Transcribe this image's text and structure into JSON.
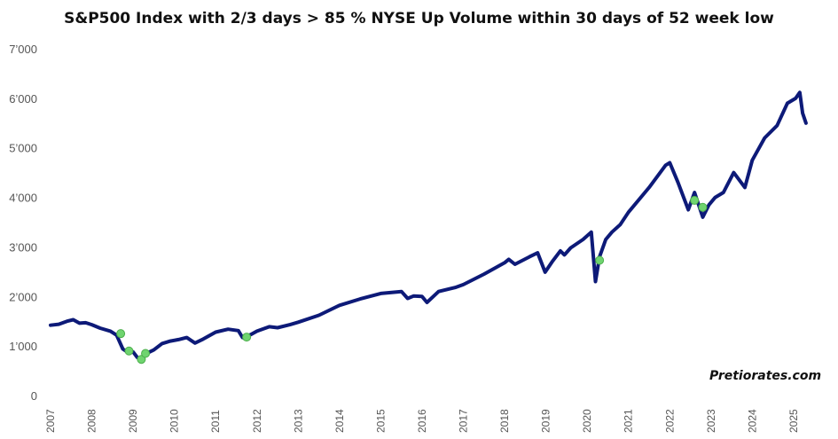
{
  "chart_data": {
    "type": "line",
    "title": "S&P500 Index with 2/3 days > 85 % NYSE Up Volume within 30 days of 52 week low",
    "watermark": "Pretiorates.com",
    "xlabel": "",
    "ylabel": "",
    "xlim": [
      2007.0,
      2025.6
    ],
    "ylim": [
      0,
      7000
    ],
    "y_ticks": [
      0,
      1000,
      2000,
      3000,
      4000,
      5000,
      6000,
      7000
    ],
    "y_tick_labels": [
      "0",
      "1’000",
      "2’000",
      "3’000",
      "4’000",
      "5’000",
      "6’000",
      "7’000"
    ],
    "x_ticks": [
      2007,
      2008,
      2009,
      2010,
      2011,
      2012,
      2013,
      2014,
      2015,
      2016,
      2017,
      2018,
      2019,
      2020,
      2021,
      2022,
      2023,
      2024,
      2025
    ],
    "x_tick_labels": [
      "2007",
      "2008",
      "2009",
      "2010",
      "2011",
      "2012",
      "2013",
      "2014",
      "2015",
      "2016",
      "2017",
      "2018",
      "2019",
      "2020",
      "2021",
      "2022",
      "2023",
      "2024",
      "2025"
    ],
    "grid": false,
    "legend": "none",
    "line_color": "#0d1a78",
    "marker_color": "#6fd46f",
    "series": [
      {
        "x": [
          2007.0,
          2007.2,
          2007.4,
          2007.55,
          2007.7,
          2007.85,
          2008.0,
          2008.2,
          2008.45,
          2008.6,
          2008.75,
          2008.88,
          2009.0,
          2009.1,
          2009.2,
          2009.3,
          2009.5,
          2009.7,
          2009.9,
          2010.1,
          2010.3,
          2010.5,
          2010.7,
          2011.0,
          2011.3,
          2011.55,
          2011.65,
          2011.85,
          2012.0,
          2012.3,
          2012.5,
          2012.8,
          2013.0,
          2013.5,
          2014.0,
          2014.5,
          2015.0,
          2015.5,
          2015.65,
          2015.8,
          2016.0,
          2016.12,
          2016.4,
          2016.8,
          2017.0,
          2017.5,
          2018.0,
          2018.1,
          2018.25,
          2018.6,
          2018.8,
          2018.98,
          2019.15,
          2019.35,
          2019.45,
          2019.6,
          2019.9,
          2020.1,
          2020.2,
          2020.3,
          2020.45,
          2020.6,
          2020.8,
          2021.0,
          2021.5,
          2021.9,
          2022.0,
          2022.2,
          2022.45,
          2022.6,
          2022.8,
          2022.95,
          2023.1,
          2023.3,
          2023.55,
          2023.82,
          2024.0,
          2024.3,
          2024.6,
          2024.85,
          2025.05,
          2025.15,
          2025.22,
          2025.3
        ],
        "values": [
          1420,
          1440,
          1500,
          1530,
          1460,
          1470,
          1430,
          1360,
          1300,
          1220,
          940,
          870,
          880,
          770,
          720,
          840,
          920,
          1050,
          1100,
          1130,
          1170,
          1060,
          1140,
          1280,
          1340,
          1310,
          1170,
          1230,
          1300,
          1390,
          1370,
          1430,
          1480,
          1620,
          1820,
          1950,
          2060,
          2100,
          1960,
          2010,
          2000,
          1880,
          2100,
          2180,
          2240,
          2450,
          2680,
          2750,
          2650,
          2800,
          2880,
          2490,
          2700,
          2920,
          2840,
          2980,
          3150,
          3300,
          2300,
          2800,
          3150,
          3300,
          3450,
          3700,
          4200,
          4650,
          4700,
          4300,
          3750,
          4100,
          3600,
          3850,
          4000,
          4100,
          4500,
          4200,
          4750,
          5200,
          5450,
          5900,
          6000,
          6120,
          5700,
          5500
        ]
      }
    ],
    "signals": {
      "x": [
        2008.7,
        2008.9,
        2009.2,
        2009.3,
        2011.75,
        2020.3,
        2022.6,
        2022.8
      ],
      "values": [
        1250,
        900,
        730,
        850,
        1180,
        2730,
        3940,
        3800
      ]
    }
  }
}
